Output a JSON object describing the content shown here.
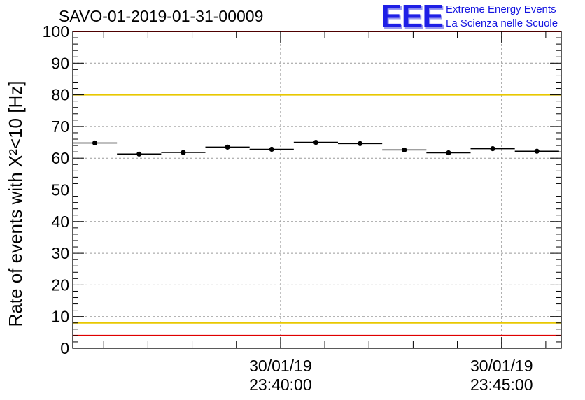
{
  "header": {
    "title": "SAVO-01-2019-01-31-00009",
    "logo_letters": "EEE",
    "logo_line1": "Extreme Energy Events",
    "logo_line2": "La Scienza nelle Scuole"
  },
  "chart_data": {
    "type": "scatter",
    "title": "SAVO-01-2019-01-31-00009",
    "ylabel": "Rate of events with X²<10 [Hz]",
    "xlabel": "",
    "ylim": [
      0,
      100
    ],
    "xlim_minutes": [
      35.3,
      46.35
    ],
    "y_ticks": [
      "0",
      "10",
      "20",
      "30",
      "40",
      "50",
      "60",
      "70",
      "80",
      "90",
      "100"
    ],
    "x_ticks": [
      {
        "minute": 40,
        "date": "30/01/19",
        "time": "23:40:00"
      },
      {
        "minute": 45,
        "date": "30/01/19",
        "time": "23:45:00"
      }
    ],
    "grid": true,
    "series": [
      {
        "name": "rate",
        "x_minutes": [
          35.8,
          36.8,
          37.8,
          38.8,
          39.8,
          40.8,
          41.8,
          42.8,
          43.8,
          44.8,
          45.8
        ],
        "bin_halfwidth_minutes": 0.5,
        "values": [
          64.8,
          61.3,
          61.8,
          63.5,
          62.8,
          65.0,
          64.6,
          62.6,
          61.7,
          63.0,
          62.2
        ],
        "errors": [
          0.6,
          0.6,
          0.6,
          0.6,
          0.6,
          0.6,
          0.6,
          0.6,
          0.6,
          0.6,
          0.6
        ]
      }
    ],
    "reference_lines": [
      {
        "value": 100,
        "color": "#e00000"
      },
      {
        "value": 80,
        "color": "#e8c800"
      },
      {
        "value": 8,
        "color": "#e8c800"
      },
      {
        "value": 4,
        "color": "#e00000"
      }
    ]
  }
}
